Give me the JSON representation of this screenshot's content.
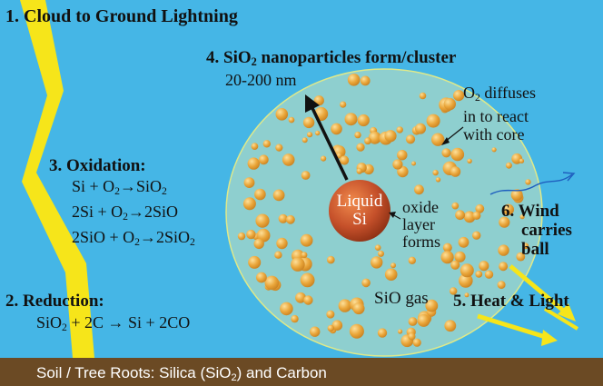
{
  "colors": {
    "sky": "#45b6e6",
    "soil": "#6b4a24",
    "lightning": "#f6e51a",
    "ball_fill": "#8ecfcf",
    "ball_outline": "#dfe98a",
    "particle": "#e8a63a",
    "core": "#c5502a"
  },
  "labels": {
    "step1": "1. Cloud to Ground Lightning",
    "step4_prefix": "4. SiO",
    "step4_sub": "2",
    "step4_suffix": " nanoparticles form/cluster",
    "size_range": "20-200 nm",
    "o2_diffuses": {
      "l1_pre": "O",
      "l1_sub": "2",
      "l1_post": " diffuses",
      "l2": "in to react",
      "l3": "with core"
    },
    "core": {
      "line1": "Liquid",
      "line2": "Si"
    },
    "oxide_layer": {
      "l1": "oxide",
      "l2": "layer",
      "l3": "forms"
    },
    "sio_gas": "SiO gas",
    "step6": {
      "l1": "6. Wind",
      "l2": "carries",
      "l3": "ball"
    },
    "step5": "5. Heat & Light",
    "step3": "3. Oxidation:",
    "step2": "2. Reduction:"
  },
  "equations": {
    "ox1": {
      "a": "Si + O",
      "a_sub": "2",
      "arrow": "→",
      "b": "SiO",
      "b_sub": "2"
    },
    "ox2": {
      "a": "2Si + O",
      "a_sub": "2",
      "arrow": "→",
      "b": "2SiO"
    },
    "ox3": {
      "a": "2SiO + O",
      "a_sub": "2",
      "arrow": "→",
      "b": "2SiO",
      "b_sub": "2"
    },
    "red1": {
      "a": "SiO",
      "a_sub": "2",
      "mid": " + 2C ",
      "arrow": "→",
      "b": " Si + 2CO"
    }
  },
  "soil": {
    "pre": "Soil / Tree Roots: Silica (SiO",
    "sub": "2",
    "post": ") and Carbon"
  }
}
